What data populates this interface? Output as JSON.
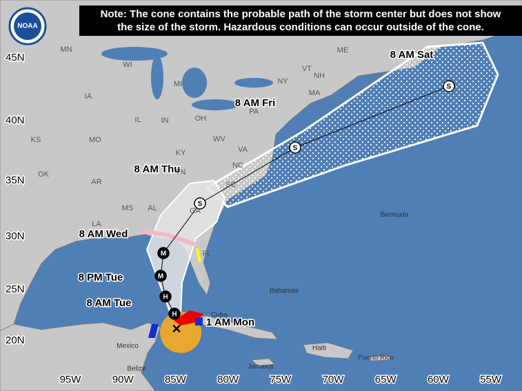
{
  "logo": "NOAA",
  "note": [
    "Note: The cone contains the probable path of the storm center but does not show",
    "the size of the storm. Hazardous conditions can occur outside of the cone."
  ],
  "latitudes": [
    "45N",
    "40N",
    "35N",
    "30N",
    "25N",
    "20N"
  ],
  "longitudes": [
    "95W",
    "90W",
    "85W",
    "80W",
    "75W",
    "70W",
    "65W",
    "60W",
    "55W"
  ],
  "forecast_times": [
    "8 AM Sat",
    "8 AM Fri",
    "8 AM Thu",
    "8 AM Wed",
    "8 PM Tue",
    "8 AM Tue",
    "1 AM Mon"
  ],
  "storm_symbols": [
    "S",
    "S",
    "S",
    "M",
    "M",
    "H",
    "H"
  ],
  "states": [
    "MN",
    "WI",
    "MI",
    "ME",
    "VT",
    "NH",
    "NY",
    "MA",
    "PA",
    "IA",
    "IL",
    "IN",
    "OH",
    "WV",
    "VA",
    "KS",
    "MO",
    "KY",
    "OK",
    "AR",
    "TN",
    "NC",
    "SC",
    "MS",
    "AL",
    "GA",
    "LA",
    "FL"
  ],
  "places": [
    "Bermuda",
    "Bahamas",
    "Cuba",
    "Mexico",
    "Belize",
    "Jamaica",
    "Haiti",
    "Puerto Rico"
  ]
}
